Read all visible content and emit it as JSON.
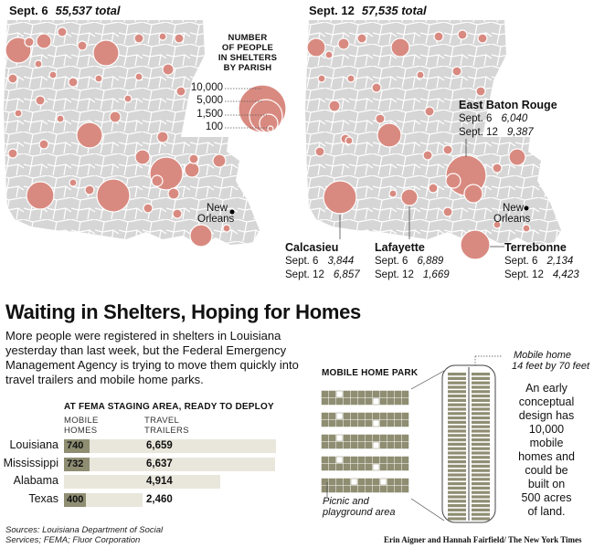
{
  "map_left": {
    "title": "Sept. 6",
    "total": "55,537 total"
  },
  "map_right": {
    "title": "Sept. 12",
    "total": "57,535 total"
  },
  "legend": {
    "title_lines": [
      "NUMBER",
      "OF PEOPLE",
      "IN SHELTERS",
      "BY PARISH"
    ],
    "values": [
      "10,000",
      "5,000",
      "1,500",
      "100"
    ]
  },
  "new_orleans": [
    "New",
    "Orleans"
  ],
  "callouts": {
    "east_baton_rouge": {
      "name": "East Baton Rouge",
      "rows": [
        {
          "label": "Sept. 6",
          "value": "6,040"
        },
        {
          "label": "Sept. 12",
          "value": "9,387"
        }
      ]
    },
    "calcasieu": {
      "name": "Calcasieu",
      "rows": [
        {
          "label": "Sept. 6",
          "value": "3,844"
        },
        {
          "label": "Sept. 12",
          "value": "6,857"
        }
      ]
    },
    "lafayette": {
      "name": "Lafayette",
      "rows": [
        {
          "label": "Sept. 6",
          "value": "6,889"
        },
        {
          "label": "Sept. 12",
          "value": "1,669"
        }
      ]
    },
    "terrebonne": {
      "name": "Terrebonne",
      "rows": [
        {
          "label": "Sept. 6",
          "value": "2,134"
        },
        {
          "label": "Sept. 12",
          "value": "4,423"
        }
      ]
    }
  },
  "headline": "Waiting in Shelters, Hoping for Homes",
  "intro": "More people were registered in shelters in Louisiana yesterday than last week, but the Federal Emergency Management Agency is trying to move them quickly into travel trailers and mobile home parks.",
  "fema": {
    "title": "AT FEMA STAGING AREA, READY TO DEPLOY",
    "col_mobile": [
      "MOBILE",
      "HOMES"
    ],
    "col_travel": [
      "TRAVEL",
      "TRAILERS"
    ],
    "rows": [
      {
        "label": "Louisiana",
        "mobile": "740",
        "mobile_value": 740,
        "travel": "6,659",
        "travel_value": 6659
      },
      {
        "label": "Mississippi",
        "mobile": "732",
        "mobile_value": 732,
        "travel": "6,637",
        "travel_value": 6637
      },
      {
        "label": "Alabama",
        "mobile": "",
        "mobile_value": 0,
        "travel": "4,914",
        "travel_value": 4914
      },
      {
        "label": "Texas",
        "mobile": "400",
        "mobile_value": 400,
        "travel": "2,460",
        "travel_value": 2460
      }
    ]
  },
  "park": {
    "title": "MOBILE HOME PARK",
    "picnic": [
      "Picnic and",
      "playground area"
    ],
    "mobile_home": [
      "Mobile home",
      "14 feet by 70 feet"
    ],
    "concept": [
      "An early",
      "conceptual",
      "design has",
      "10,000",
      "mobile",
      "homes and",
      "could be",
      "built on",
      "500 acres",
      "of land."
    ]
  },
  "source": [
    "Sources: Louisiana Department of Social",
    "Services; FEMA; Fluor Corporation"
  ],
  "credit": "Erin Aigner and Hannah Fairfield/ The New York Times",
  "colors": {
    "bubble": "#d98a80",
    "bubble_stroke": "#ffffff",
    "land": "#d6d6d6",
    "parish_line": "#ffffff",
    "mobile_bar": "#8f8e73",
    "row_bg": "#e9e7dc"
  }
}
